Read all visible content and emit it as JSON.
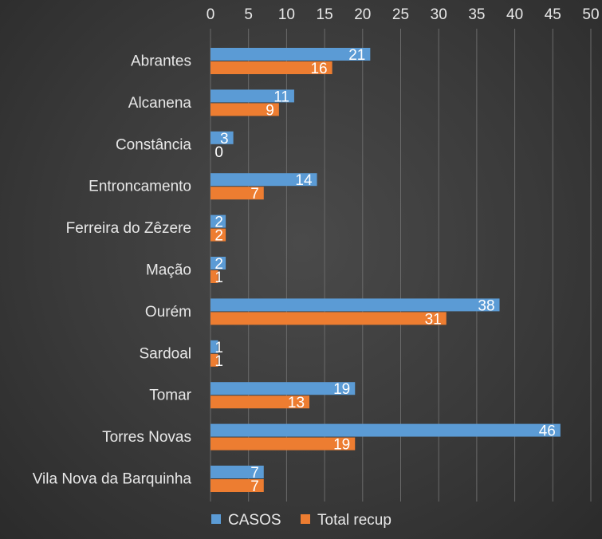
{
  "chart_data": {
    "type": "bar",
    "orientation": "horizontal",
    "categories": [
      "Abrantes",
      "Alcanena",
      "Constância",
      "Entroncamento",
      "Ferreira do Zêzere",
      "Mação",
      "Ourém",
      "Sardoal",
      "Tomar",
      "Torres Novas",
      "Vila Nova da Barquinha"
    ],
    "series": [
      {
        "name": "CASOS",
        "color": "#5b9bd5",
        "values": [
          21,
          11,
          3,
          14,
          2,
          2,
          38,
          1,
          19,
          46,
          7
        ]
      },
      {
        "name": "Total recup",
        "color": "#ed7d31",
        "values": [
          16,
          9,
          0,
          7,
          2,
          1,
          31,
          1,
          13,
          19,
          7
        ]
      }
    ],
    "xlim": [
      0,
      50
    ],
    "xticks": [
      0,
      5,
      10,
      15,
      20,
      25,
      30,
      35,
      40,
      45,
      50
    ],
    "x_axis_position": "top",
    "grid": true,
    "legend_position": "bottom",
    "data_labels": true
  }
}
